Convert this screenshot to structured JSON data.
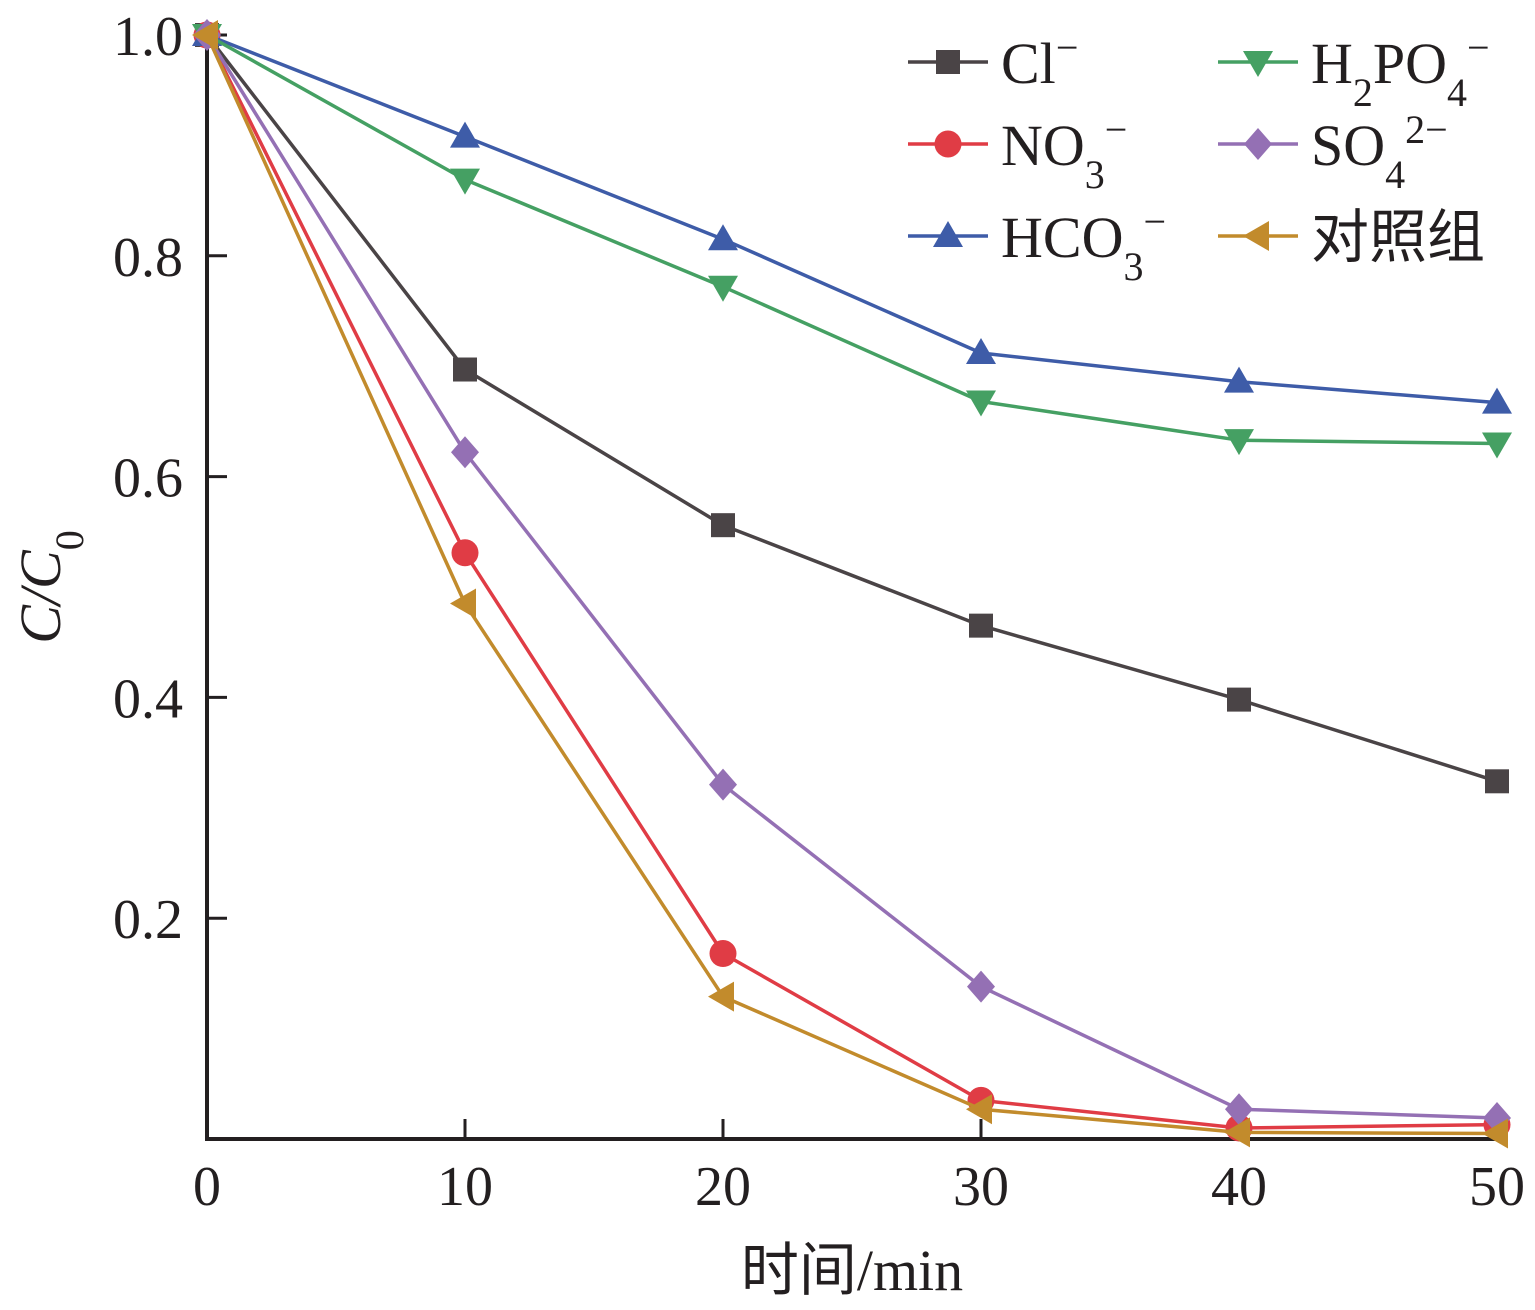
{
  "chart_data": {
    "type": "line",
    "title": "",
    "xlabel": "时间/min",
    "ylabel_parts": {
      "main": "C/C",
      "sub": "0"
    },
    "xlim": [
      0,
      50
    ],
    "ylim": [
      0,
      1.0
    ],
    "x_ticks": [
      0,
      10,
      20,
      30,
      40,
      50
    ],
    "x_tick_labels": [
      "0",
      "10",
      "20",
      "30",
      "40",
      "50"
    ],
    "y_ticks": [
      0.2,
      0.4,
      0.6,
      0.8,
      1.0
    ],
    "y_tick_labels": [
      "0.2",
      "0.4",
      "0.6",
      "0.8",
      "1.0"
    ],
    "x": [
      0,
      10,
      20,
      30,
      40,
      50
    ],
    "legend_position": "top-right",
    "series": [
      {
        "id": "cl",
        "name": "Cl⁻",
        "label_main": "Cl",
        "label_sub": "",
        "label_sup": "−",
        "color": "#4a4446",
        "marker": "square",
        "values": [
          1.0,
          0.697,
          0.556,
          0.465,
          0.398,
          0.324
        ]
      },
      {
        "id": "no3",
        "name": "NO₃⁻",
        "label_main": "NO",
        "label_sub": "3",
        "label_sup": "−",
        "color": "#e03c45",
        "marker": "circle",
        "values": [
          1.0,
          0.531,
          0.168,
          0.035,
          0.01,
          0.013
        ]
      },
      {
        "id": "hco3",
        "name": "HCO₃⁻",
        "label_main": "HCO",
        "label_sub": "3",
        "label_sup": "−",
        "color": "#3e5ca8",
        "marker": "triangle-up",
        "values": [
          1.0,
          0.908,
          0.815,
          0.712,
          0.686,
          0.667
        ]
      },
      {
        "id": "h2po4",
        "name": "H₂PO₄⁻",
        "label_main": "H",
        "label_sub": "2",
        "label_main2": "PO",
        "label_sub2": "4",
        "label_sup": "−",
        "color": "#45a063",
        "marker": "triangle-down",
        "values": [
          1.0,
          0.869,
          0.772,
          0.668,
          0.633,
          0.63
        ]
      },
      {
        "id": "so4",
        "name": "SO₄²⁻",
        "label_main": "SO",
        "label_sub": "4",
        "label_sup": "2−",
        "color": "#9470b4",
        "marker": "diamond",
        "values": [
          1.0,
          0.622,
          0.321,
          0.138,
          0.027,
          0.019
        ]
      },
      {
        "id": "ctrl",
        "name": "对照组",
        "label_main": "对照组",
        "label_sub": "",
        "label_sup": "",
        "color": "#c28b2c",
        "marker": "triangle-left",
        "values": [
          1.0,
          0.485,
          0.129,
          0.027,
          0.006,
          0.005
        ]
      }
    ]
  }
}
